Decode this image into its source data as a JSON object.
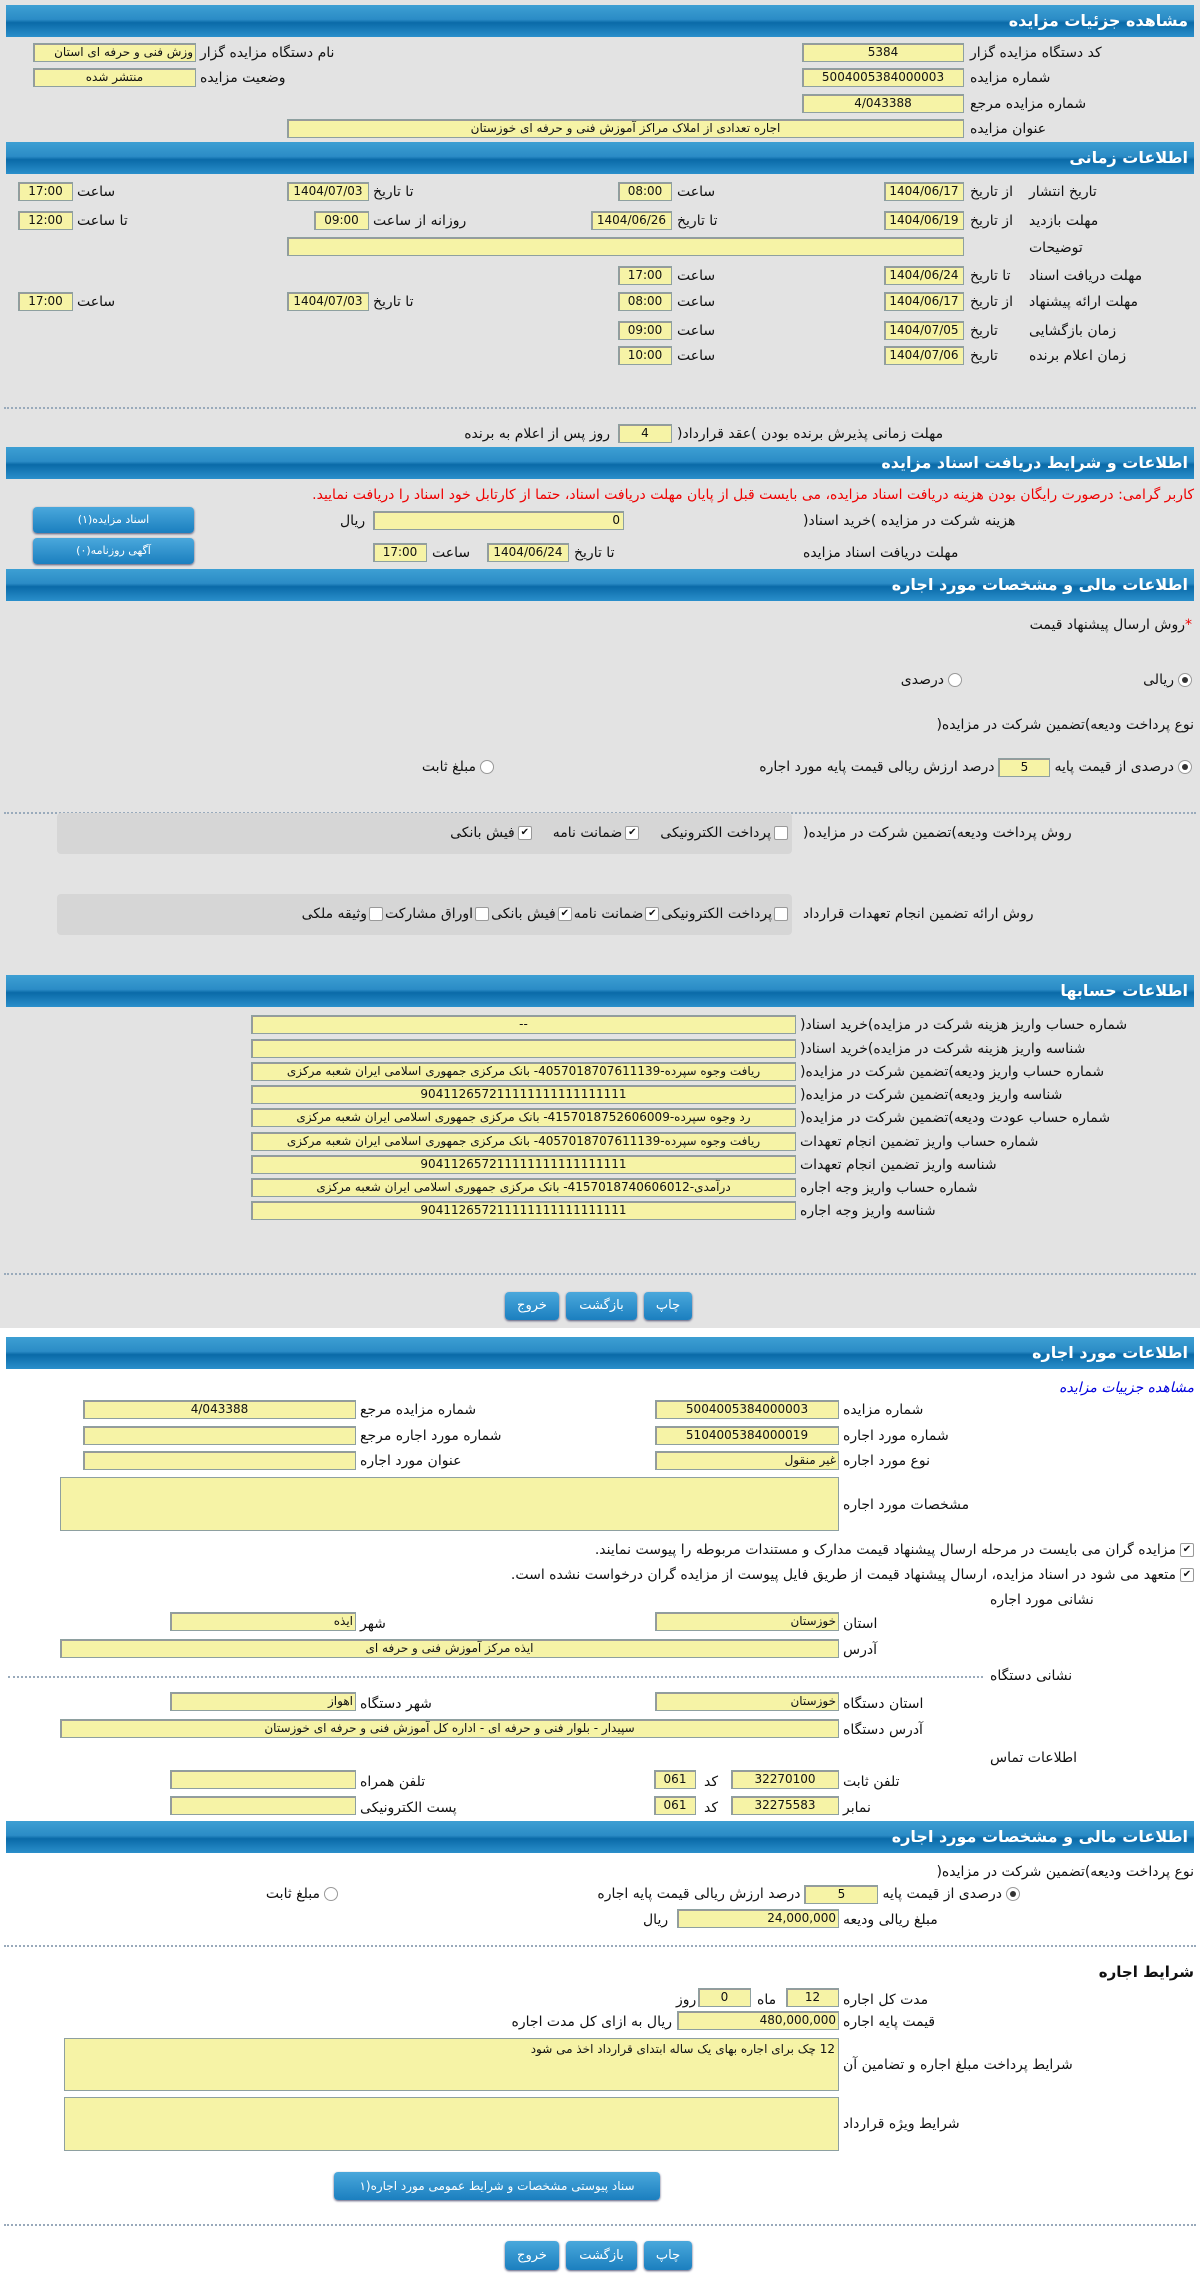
{
  "s1": {
    "title": "مشاهده جزئیات مزایده",
    "org_code_label": "کد دستگاه مزایده گزار",
    "org_code": "5384",
    "org_name_label": "نام دستگاه مزایده گزار",
    "org_name": "وزش فنی و حرفه ای استان",
    "auction_no_label": "شماره مزایده",
    "auction_no": "5004005384000003",
    "status_label": "وضعیت مزایده",
    "status": "منتشر شده",
    "ref_no_label": "شماره مزایده مرجع",
    "ref_no": "4/043388",
    "subject_label": "عنوان مزایده",
    "subject": "اجاره تعدادی از املاک مراکز آموزش فنی و حرفه ای خوزستان"
  },
  "s2": {
    "title": "اطلاعات زمانی",
    "from_date": "از تاریخ",
    "to_date": "تا تاریخ",
    "date": "تاریخ",
    "time": "ساعت",
    "to_time": "تا ساعت",
    "daily_from": "روزانه از ساعت",
    "publish": {
      "label": "تاریخ انتشار",
      "from": "1404/06/17",
      "from_time": "08:00",
      "to": "1404/07/03",
      "to_time": "17:00"
    },
    "visit": {
      "label": "مهلت بازدید",
      "from": "1404/06/19",
      "to": "1404/06/26",
      "daily_from": "09:00",
      "daily_to": "12:00"
    },
    "notes_label": "توضیحات",
    "notes": "",
    "doc_deadline": {
      "label": "مهلت دریافت اسناد",
      "to": "1404/06/24",
      "time": "17:00"
    },
    "offer": {
      "label": "مهلت ارائه پیشنهاد",
      "from": "1404/06/17",
      "from_time": "08:00",
      "to": "1404/07/03",
      "to_time": "17:00"
    },
    "opening": {
      "label": "زمان بازگشایی",
      "date": "1404/07/05",
      "time": "09:00"
    },
    "winner": {
      "label": "زمان اعلام برنده",
      "date": "1404/07/06",
      "time": "10:00"
    },
    "contract_label": "مهلت زمانی پذیرش برنده بودن )عقد قرارداد(",
    "contract_days": "4",
    "contract_suffix": "روز پس از اعلام به برنده"
  },
  "s3": {
    "title": "اطلاعات و شرایط دریافت اسناد مزایده",
    "warning": "کاربر گرامی: درصورت رایگان بودن هزینه دریافت اسناد مزایده، می بایست قبل از پایان مهلت دریافت اسناد، حتما از کارتابل خود اسناد را دریافت نمایید.",
    "fee_label": "هزینه شرکت در مزایده )خرید اسناد(",
    "fee": "0",
    "rial": "ریال",
    "deadline_label": "مهلت دریافت اسناد مزایده",
    "to_date": "تا تاریخ",
    "date": "1404/06/24",
    "time_label": "ساعت",
    "time": "17:00",
    "docs_button": "اسناد مزایده(۱)",
    "ads_button": "آگهی روزنامه(۰)"
  },
  "s4": {
    "title": "اطلاعات مالی و مشخصات مورد اجاره",
    "price_method_label": "روش ارسال پیشنهاد قیمت",
    "required": "*",
    "price_methods": [
      {
        "label": "ریالی",
        "selected": true
      },
      {
        "label": "درصدی",
        "selected": false
      }
    ],
    "deposit_type_label": "نوع پرداخت ودیعه)تضمین شرکت در مزایده(",
    "percent_label": "درصدی از قیمت پایه",
    "percent": "5",
    "percent_suffix": "درصد ارزش ریالی قیمت پایه مورد اجاره",
    "fixed_label": "مبلغ ثابت",
    "deposit_method_label": "روش پرداخت ودیعه)تضمین شرکت در مزایده(",
    "deposit_methods": [
      {
        "label": "پرداخت الکترونیکی",
        "checked": false
      },
      {
        "label": "ضمانت نامه",
        "checked": true
      },
      {
        "label": "فیش بانکی",
        "checked": true
      }
    ],
    "guarantee_label": "روش ارائه تضمین انجام تعهدات قرارداد",
    "guarantee_methods": [
      {
        "label": "پرداخت الکترونیکی",
        "checked": false
      },
      {
        "label": "ضمانت نامه",
        "checked": true
      },
      {
        "label": "فیش بانکی",
        "checked": true
      },
      {
        "label": "اوراق مشارکت",
        "checked": false
      },
      {
        "label": "وثیقه ملکی",
        "checked": false
      }
    ]
  },
  "s5": {
    "title": "اطلاعات حسابها",
    "rows": [
      {
        "label": "شماره حساب واریز هزینه شرکت در مزایده)خرید اسناد(",
        "value": "--"
      },
      {
        "label": "شناسه واریز هزینه شرکت در مزایده)خرید اسناد(",
        "value": ""
      },
      {
        "label": "شماره حساب واریز ودیعه)تضمین شرکت در مزایده(",
        "value": "ریافت وجوه سپرده-4057018707611139- بانک مرکزی جمهوری اسلامی ایران شعبه مرکزی"
      },
      {
        "label": "شناسه واریز ودیعه)تضمین شرکت در مزایده(",
        "value": "904112657211111111111111111"
      },
      {
        "label": "شماره حساب عودت ودیعه)تضمین شرکت در مزایده(",
        "value": "رد وجوه سپرده-4157018752606009- بانک مرکزی جمهوری اسلامی ایران شعبه مرکزی"
      },
      {
        "label": "شماره حساب واریز تضمین انجام تعهدات",
        "value": "ریافت وجوه سپرده-4057018707611139- بانک مرکزی جمهوری اسلامی ایران شعبه مرکزی"
      },
      {
        "label": "شناسه واریز تضمین انجام تعهدات",
        "value": "904112657211111111111111111"
      },
      {
        "label": "شماره حساب واریز وجه اجاره",
        "value": "درآمدی-4157018740606012- بانک مرکزی جمهوری اسلامی ایران شعبه مرکزی"
      },
      {
        "label": "شناسه واریز وجه اجاره",
        "value": "904112657211111111111111111"
      }
    ]
  },
  "buttons": {
    "print": "چاپ",
    "back": "بازگشت",
    "exit": "خروج"
  },
  "s6": {
    "title": "اطلاعات مورد اجاره",
    "link": "مشاهده جزییات مزایده",
    "auction_no_label": "شماره مزایده",
    "auction_no": "5004005384000003",
    "ref_no_label": "شماره مزایده مرجع",
    "ref_no": "4/043388",
    "item_no_label": "شماره مورد اجاره",
    "item_no": "5104005384000019",
    "item_ref_label": "شماره مورد اجاره مرجع",
    "item_ref": "",
    "item_type_label": "نوع مورد اجاره",
    "item_type": "غیر منقول",
    "item_title_label": "عنوان مورد اجاره",
    "item_title": "",
    "specs_label": "مشخصات مورد اجاره",
    "specs": "",
    "check1": "مزایده گران می بایست در مرحله ارسال پیشنهاد قیمت مدارک و مستندات مربوطه را پیوست نمایند.",
    "check2": "متعهد می شود در اسناد مزایده، ارسال پیشنهاد قیمت از طریق فایل پیوست از مزایده گران درخواست نشده است.",
    "address_title": "نشانی مورد اجاره",
    "province_label": "استان",
    "province": "خوزستان",
    "city_label": "شهر",
    "city": "ایذه",
    "address_label": "آدرس",
    "address": "ایذه مرکز آموزش فنی و حرفه ای",
    "org_address_title": "نشانی دستگاه",
    "org_province_label": "استان دستگاه",
    "org_province": "خوزستان",
    "org_city_label": "شهر دستگاه",
    "org_city": "اهواز",
    "org_address_label": "آدرس دستگاه",
    "org_address": "سپیدار - بلوار فنی و حرفه ای - اداره کل آموزش فنی و حرفه ای خوزستان",
    "contact_title": "اطلاعات تماس",
    "phone_label": "تلفن ثابت",
    "phone": "32270100",
    "code_label": "کد",
    "phone_code": "061",
    "mobile_label": "تلفن همراه",
    "mobile": "",
    "fax_label": "نمابر",
    "fax": "32275583",
    "fax_code": "061",
    "email_label": "پست الکترونیکی",
    "email": ""
  },
  "s7": {
    "title": "اطلاعات مالی و مشخصات مورد اجاره",
    "deposit_type_label": "نوع پرداخت ودیعه)تضمین شرکت در مزایده(",
    "percent_label": "درصدی از قیمت پایه",
    "percent": "5",
    "percent_suffix": "درصد ارزش ریالی قیمت پایه اجاره",
    "fixed_label": "مبلغ ثابت",
    "deposit_amount_label": "مبلغ ریالی ودیعه",
    "deposit_amount": "24,000,000",
    "rial": "ریال",
    "terms_title": "شرایط اجاره",
    "duration_label": "مدت کل اجاره",
    "months": "12",
    "month_label": "ماه",
    "days": "0",
    "day_label": "روز",
    "base_price_label": "قیمت پایه اجاره",
    "base_price": "480,000,000",
    "base_price_suffix": "ریال به ازای کل مدت اجاره",
    "payment_terms_label": "شرایط پرداخت مبلغ اجاره و تضامین آن",
    "payment_terms": "12 چک برای اجاره بهای یک ساله ابتدای قرارداد اخذ می شود",
    "special_terms_label": "شرایط ویژه قرارداد",
    "special_terms": "",
    "attachment_button": "سناد پیوستی مشخصات و شرایط عمومی مورد اجاره(۱"
  }
}
